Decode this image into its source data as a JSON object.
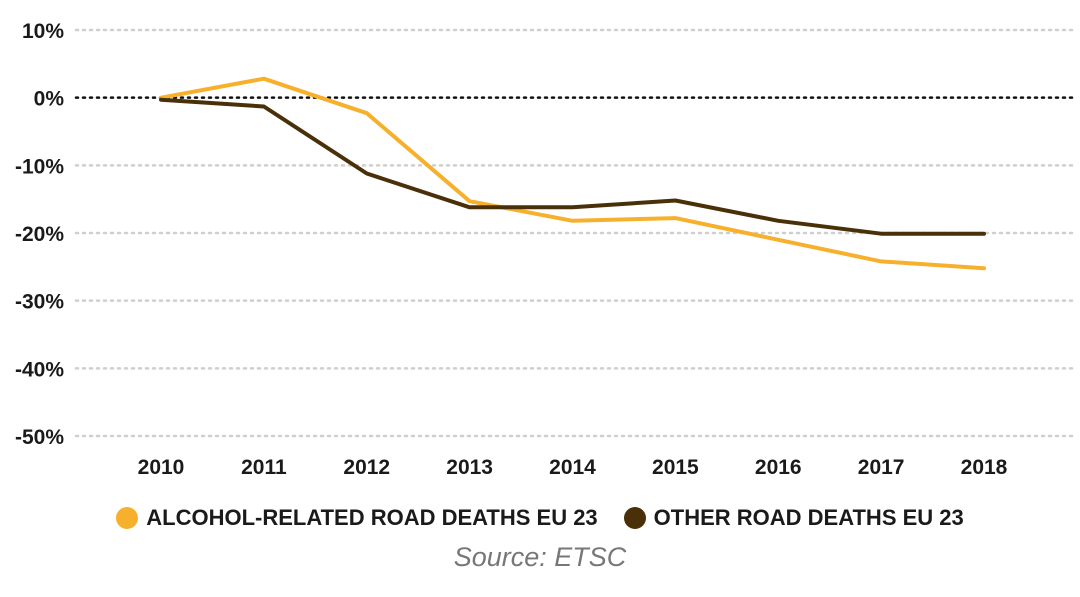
{
  "chart_data": {
    "type": "line",
    "x": [
      "2010",
      "2011",
      "2012",
      "2013",
      "2014",
      "2015",
      "2016",
      "2017",
      "2018"
    ],
    "yticks": [
      "10%",
      "0%",
      "-10%",
      "-20%",
      "-30%",
      "-40%",
      "-50%"
    ],
    "ytick_values": [
      10,
      0,
      -10,
      -20,
      -30,
      -40,
      -50
    ],
    "ylim": [
      -50,
      10
    ],
    "y_unit": "%",
    "grid": "horizontal dotted",
    "zero_line": "dotted black",
    "legend_position": "bottom",
    "series": [
      {
        "name": "ALCOHOL-RELATED ROAD DEATHS EU 23",
        "color": "#f7b02c",
        "values": [
          0,
          2.8,
          -2.3,
          -15.3,
          -18.2,
          -17.8,
          -21.0,
          -24.2,
          -25.2
        ]
      },
      {
        "name": "OTHER ROAD DEATHS EU 23",
        "color": "#4a3008",
        "values": [
          -0.3,
          -1.3,
          -11.2,
          -16.2,
          -16.2,
          -15.2,
          -18.2,
          -20.1,
          -20.1
        ]
      }
    ],
    "source": "Source: ETSC"
  }
}
